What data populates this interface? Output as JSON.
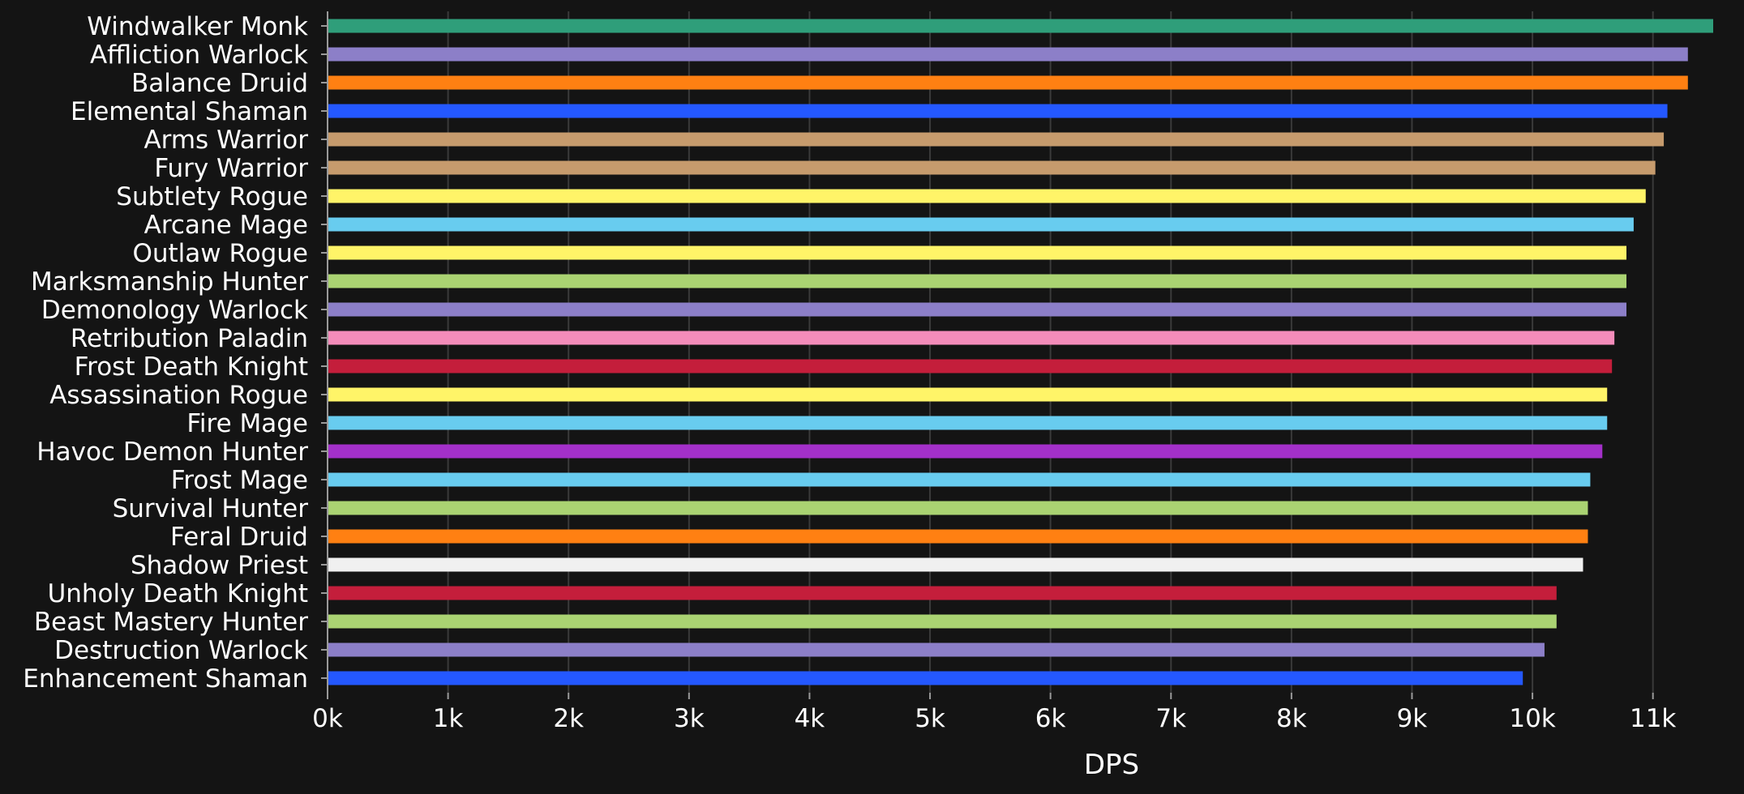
{
  "chart_data": {
    "type": "bar",
    "orientation": "horizontal",
    "xlabel": "DPS",
    "ylabel": "",
    "title": "",
    "xlim": [
      0,
      11500
    ],
    "x_ticks": [
      0,
      1000,
      2000,
      3000,
      4000,
      5000,
      6000,
      7000,
      8000,
      9000,
      10000,
      11000
    ],
    "x_tick_labels": [
      "0k",
      "1k",
      "2k",
      "3k",
      "4k",
      "5k",
      "6k",
      "7k",
      "8k",
      "9k",
      "10k",
      "11k"
    ],
    "grid": "vertical",
    "legend": "none",
    "background_color": "#141414",
    "text_color": "#ffffff",
    "categories": [
      "Windwalker Monk",
      "Affliction Warlock",
      "Balance Druid",
      "Elemental Shaman",
      "Arms Warrior",
      "Fury Warrior",
      "Subtlety Rogue",
      "Arcane Mage",
      "Outlaw Rogue",
      "Marksmanship Hunter",
      "Demonology Warlock",
      "Retribution Paladin",
      "Frost Death Knight",
      "Assassination Rogue",
      "Fire Mage",
      "Havoc Demon Hunter",
      "Frost Mage",
      "Survival Hunter",
      "Feral Druid",
      "Shadow Priest",
      "Unholy Death Knight",
      "Beast Mastery Hunter",
      "Destruction Warlock",
      "Enhancement Shaman"
    ],
    "values": [
      11500,
      11290,
      11290,
      11120,
      11090,
      11020,
      10940,
      10840,
      10780,
      10780,
      10780,
      10680,
      10660,
      10620,
      10620,
      10580,
      10480,
      10460,
      10460,
      10420,
      10200,
      10200,
      10100,
      9920
    ],
    "colors": [
      "#2f9e7a",
      "#8c7fc8",
      "#ff8012",
      "#2458ff",
      "#c69b6d",
      "#c69b6d",
      "#fff468",
      "#68ccef",
      "#fff468",
      "#aad372",
      "#8c7fc8",
      "#f48cba",
      "#c41e3b",
      "#fff468",
      "#68ccef",
      "#a330c9",
      "#68ccef",
      "#aad372",
      "#ff8012",
      "#f0f0f0",
      "#c41e3b",
      "#aad372",
      "#8c7fc8",
      "#2458ff"
    ]
  }
}
